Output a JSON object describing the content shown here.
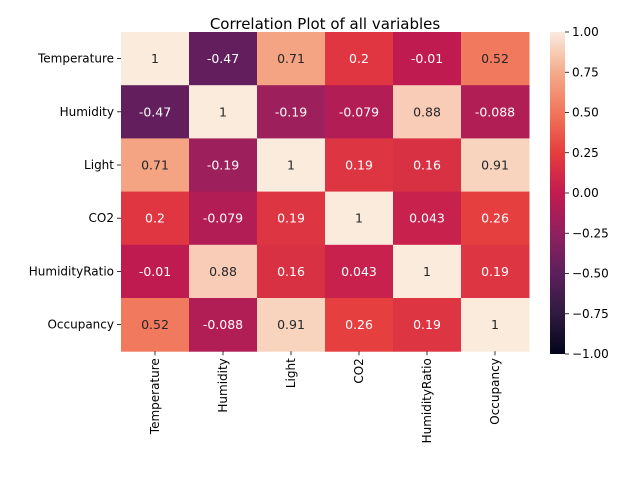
{
  "chart_data": {
    "type": "heatmap",
    "title": "Correlation Plot of all variables",
    "xlabel": "",
    "ylabel": "",
    "x_categories": [
      "Temperature",
      "Humidity",
      "Light",
      "CO2",
      "HumidityRatio",
      "Occupancy"
    ],
    "y_categories": [
      "Temperature",
      "Humidity",
      "Light",
      "CO2",
      "HumidityRatio",
      "Occupancy"
    ],
    "values": [
      [
        1,
        -0.47,
        0.71,
        0.2,
        -0.01,
        0.52
      ],
      [
        -0.47,
        1,
        -0.19,
        -0.079,
        0.88,
        -0.088
      ],
      [
        0.71,
        -0.19,
        1,
        0.19,
        0.16,
        0.91
      ],
      [
        0.2,
        -0.079,
        0.19,
        1,
        0.043,
        0.26
      ],
      [
        -0.01,
        0.88,
        0.16,
        0.043,
        1,
        0.19
      ],
      [
        0.52,
        -0.088,
        0.91,
        0.26,
        0.19,
        1
      ]
    ],
    "cell_labels": [
      [
        "1",
        "-0.47",
        "0.71",
        "0.2",
        "-0.01",
        "0.52"
      ],
      [
        "-0.47",
        "1",
        "-0.19",
        "-0.079",
        "0.88",
        "-0.088"
      ],
      [
        "0.71",
        "-0.19",
        "1",
        "0.19",
        "0.16",
        "0.91"
      ],
      [
        "0.2",
        "-0.079",
        "0.19",
        "1",
        "0.043",
        "0.26"
      ],
      [
        "-0.01",
        "0.88",
        "0.16",
        "0.043",
        "1",
        "0.19"
      ],
      [
        "0.52",
        "-0.088",
        "0.91",
        "0.26",
        "0.19",
        "1"
      ]
    ],
    "colorbar": {
      "range": [
        -1,
        1
      ],
      "ticks": [
        -1.0,
        -0.75,
        -0.5,
        -0.25,
        0.0,
        0.25,
        0.5,
        0.75,
        1.0
      ],
      "tick_labels": [
        "−1.00",
        "−0.75",
        "−0.50",
        "−0.25",
        "0.00",
        "0.25",
        "0.50",
        "0.75",
        "1.00"
      ],
      "position": "right"
    },
    "colormap": {
      "name": "rocket",
      "stops": [
        {
          "value": -1.0,
          "color": "#03051a"
        },
        {
          "value": -0.75,
          "color": "#2f1a40"
        },
        {
          "value": -0.5,
          "color": "#5d1f5d"
        },
        {
          "value": -0.25,
          "color": "#91205f"
        },
        {
          "value": 0.0,
          "color": "#c21b50"
        },
        {
          "value": 0.25,
          "color": "#e63d3e"
        },
        {
          "value": 0.5,
          "color": "#f1765a"
        },
        {
          "value": 0.75,
          "color": "#f5ab8b"
        },
        {
          "value": 1.0,
          "color": "#faebdd"
        }
      ]
    },
    "grid": false
  }
}
